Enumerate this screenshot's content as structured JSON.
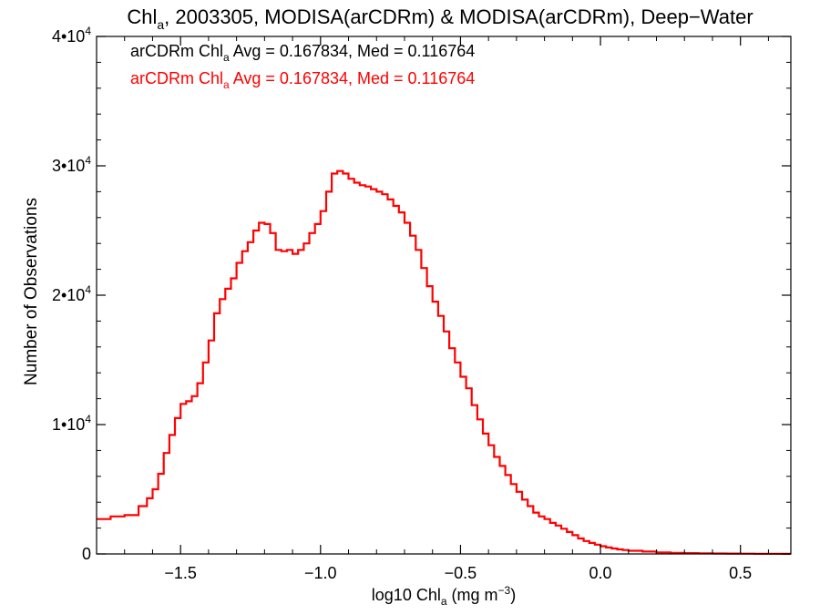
{
  "chart_data": {
    "type": "line",
    "title": {
      "prefix": "Chl",
      "prefix_sub": "a",
      "rest": ", 2003305, MODISA(arCDRm) & MODISA(arCDRm), Deep−Water"
    },
    "xlabel": {
      "prefix": "log10 Chl",
      "sub": "a",
      "mid": " (mg m",
      "sup": "−3",
      "end": ")"
    },
    "ylabel": "Number of Observations",
    "xlim": [
      -1.8,
      0.68
    ],
    "ylim": [
      0,
      40000
    ],
    "x_ticks": [
      {
        "value": -1.5,
        "label": "−1.5"
      },
      {
        "value": -1.0,
        "label": "−1.0"
      },
      {
        "value": -0.5,
        "label": "−0.5"
      },
      {
        "value": 0.0,
        "label": "0.0"
      },
      {
        "value": 0.5,
        "label": "0.5"
      }
    ],
    "y_ticks": [
      {
        "value": 0,
        "mant": "0",
        "exp": ""
      },
      {
        "value": 10000,
        "mant": "1•10",
        "exp": "4"
      },
      {
        "value": 20000,
        "mant": "2•10",
        "exp": "4"
      },
      {
        "value": 30000,
        "mant": "3•10",
        "exp": "4"
      },
      {
        "value": 40000,
        "mant": "4•10",
        "exp": "4"
      }
    ],
    "legend": [
      {
        "prefix": "arCDRm Chl",
        "sub": "a",
        "rest": " Avg = 0.167834, Med = 0.116764",
        "color": "#000000"
      },
      {
        "prefix": "arCDRm Chl",
        "sub": "a",
        "rest": " Avg = 0.167834, Med = 0.116764",
        "color": "#ff0000"
      }
    ],
    "series": [
      {
        "color": "#ff0000",
        "x": [
          -1.8,
          -1.75,
          -1.7,
          -1.65,
          -1.62,
          -1.6,
          -1.58,
          -1.56,
          -1.54,
          -1.52,
          -1.5,
          -1.48,
          -1.46,
          -1.44,
          -1.42,
          -1.4,
          -1.38,
          -1.36,
          -1.34,
          -1.32,
          -1.3,
          -1.28,
          -1.26,
          -1.24,
          -1.22,
          -1.2,
          -1.18,
          -1.16,
          -1.14,
          -1.12,
          -1.1,
          -1.08,
          -1.06,
          -1.04,
          -1.02,
          -1.0,
          -0.98,
          -0.96,
          -0.94,
          -0.92,
          -0.9,
          -0.88,
          -0.86,
          -0.84,
          -0.82,
          -0.8,
          -0.78,
          -0.76,
          -0.74,
          -0.72,
          -0.7,
          -0.68,
          -0.66,
          -0.64,
          -0.62,
          -0.6,
          -0.58,
          -0.56,
          -0.54,
          -0.52,
          -0.5,
          -0.48,
          -0.46,
          -0.44,
          -0.42,
          -0.4,
          -0.38,
          -0.36,
          -0.34,
          -0.32,
          -0.3,
          -0.28,
          -0.26,
          -0.24,
          -0.22,
          -0.2,
          -0.18,
          -0.16,
          -0.14,
          -0.12,
          -0.1,
          -0.08,
          -0.06,
          -0.04,
          -0.02,
          0.0,
          0.02,
          0.04,
          0.06,
          0.08,
          0.1,
          0.15,
          0.2,
          0.25,
          0.3,
          0.35,
          0.4,
          0.45,
          0.5,
          0.55,
          0.6,
          0.65,
          0.68
        ],
        "y": [
          2700,
          2900,
          3000,
          3700,
          4300,
          5000,
          6200,
          7800,
          9200,
          10500,
          11600,
          11800,
          12200,
          13200,
          14800,
          16500,
          18600,
          19700,
          20500,
          21300,
          22500,
          23400,
          24100,
          25000,
          25600,
          25500,
          24800,
          23500,
          23400,
          23500,
          23200,
          23500,
          24000,
          24800,
          25500,
          26500,
          28000,
          29400,
          29600,
          29400,
          29000,
          28700,
          28500,
          28400,
          28200,
          28000,
          27800,
          27400,
          26900,
          26400,
          25600,
          24600,
          23500,
          22100,
          20700,
          19500,
          18400,
          17200,
          15900,
          14800,
          13700,
          12800,
          11500,
          10400,
          9300,
          8400,
          7500,
          6800,
          6100,
          5400,
          4800,
          4200,
          3700,
          3200,
          2900,
          2700,
          2400,
          2200,
          1950,
          1700,
          1450,
          1200,
          1000,
          850,
          720,
          600,
          500,
          420,
          350,
          300,
          250,
          180,
          120,
          80,
          60,
          45,
          35,
          28,
          20,
          15,
          12,
          10,
          8
        ]
      }
    ]
  }
}
